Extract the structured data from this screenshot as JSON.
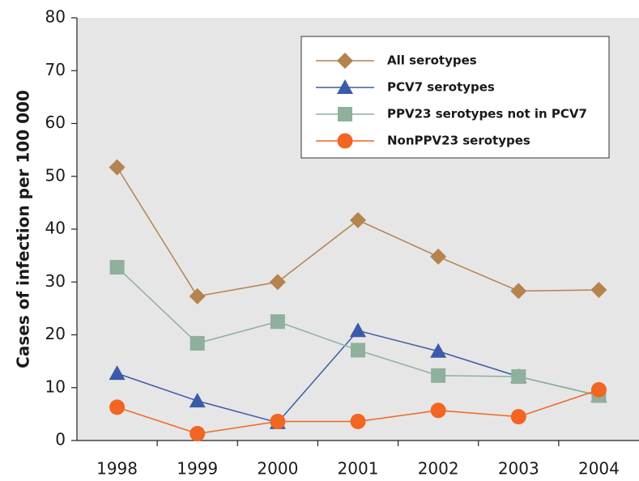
{
  "chart_data": {
    "type": "line",
    "y_label": "Cases of infection per 100 000",
    "categories": [
      "1998",
      "1999",
      "2000",
      "2001",
      "2002",
      "2003",
      "2004"
    ],
    "series": [
      {
        "name": "All serotypes",
        "color": "#b5834f",
        "marker": "diamond",
        "values": [
          51.7,
          27.3,
          30.0,
          41.7,
          34.8,
          28.3,
          28.5
        ]
      },
      {
        "name": "PCV7 serotypes",
        "color": "#3a5ba8",
        "marker": "triangle",
        "values": [
          12.7,
          7.5,
          3.4,
          20.8,
          16.9,
          12.1,
          8.5
        ]
      },
      {
        "name": "PPV23 serotypes not in PCV7",
        "color": "#8fb09c",
        "marker": "square",
        "values": [
          32.8,
          18.4,
          22.5,
          17.1,
          12.3,
          12.1,
          8.5
        ]
      },
      {
        "name": "NonPPV23 serotypes",
        "color": "#f26522",
        "marker": "circle",
        "values": [
          6.3,
          1.3,
          3.6,
          3.6,
          5.7,
          4.5,
          9.6
        ]
      }
    ],
    "ylim": [
      0,
      80
    ],
    "yticks": [
      0,
      10,
      20,
      30,
      40,
      50,
      60,
      70,
      80
    ],
    "legend": "upper right"
  }
}
